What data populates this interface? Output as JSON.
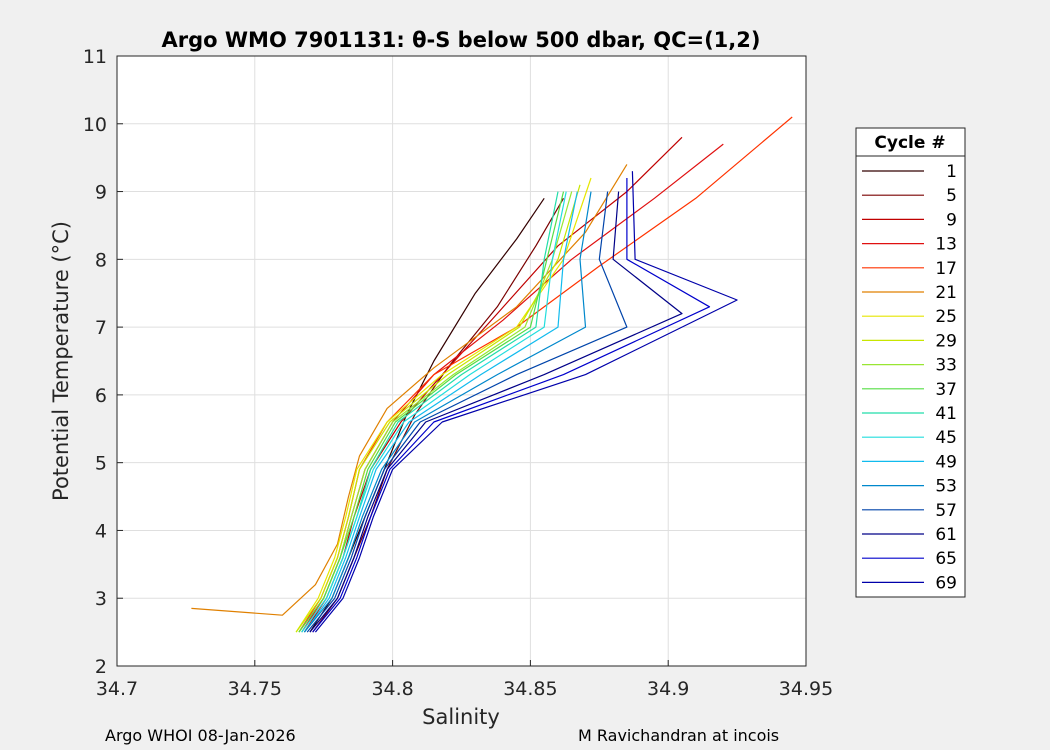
{
  "chart_data": {
    "type": "line",
    "title": "Argo WMO 7901131: θ-S below 500 dbar,  QC=(1,2)",
    "xlabel": "Salinity",
    "ylabel": "Potential Temperature (°C)",
    "xlim": [
      34.7,
      34.95
    ],
    "ylim": [
      2,
      11
    ],
    "xticks": [
      "34.7",
      "34.75",
      "34.8",
      "34.85",
      "34.9",
      "34.95"
    ],
    "yticks": [
      "2",
      "3",
      "4",
      "5",
      "6",
      "7",
      "8",
      "9",
      "10",
      "11"
    ],
    "grid": true,
    "legend": {
      "title": "Cycle #",
      "placement": "right",
      "entries": [
        {
          "label": "1",
          "color": "#330000"
        },
        {
          "label": "5",
          "color": "#7a0000"
        },
        {
          "label": "9",
          "color": "#c00000"
        },
        {
          "label": "13",
          "color": "#e01010"
        },
        {
          "label": "17",
          "color": "#ff3300"
        },
        {
          "label": "21",
          "color": "#e08000"
        },
        {
          "label": "25",
          "color": "#e6e600"
        },
        {
          "label": "29",
          "color": "#c8e600"
        },
        {
          "label": "33",
          "color": "#99e633"
        },
        {
          "label": "37",
          "color": "#55dd44"
        },
        {
          "label": "41",
          "color": "#22ddaa"
        },
        {
          "label": "45",
          "color": "#22dddd"
        },
        {
          "label": "49",
          "color": "#11bbee"
        },
        {
          "label": "53",
          "color": "#0088cc"
        },
        {
          "label": "57",
          "color": "#0044aa"
        },
        {
          "label": "61",
          "color": "#000088"
        },
        {
          "label": "65",
          "color": "#0000cc"
        },
        {
          "label": "69",
          "color": "#0000aa"
        }
      ]
    },
    "series": [
      {
        "name": "1",
        "s": [
          34.77,
          34.778,
          34.784,
          34.79,
          34.797,
          34.805,
          34.815,
          34.83,
          34.845,
          34.855
        ],
        "t": [
          2.5,
          3.0,
          3.6,
          4.2,
          4.9,
          5.7,
          6.5,
          7.5,
          8.3,
          8.9
        ]
      },
      {
        "name": "5",
        "s": [
          34.771,
          34.78,
          34.786,
          34.792,
          34.798,
          34.808,
          34.82,
          34.838,
          34.852,
          34.862
        ],
        "t": [
          2.5,
          3.0,
          3.6,
          4.2,
          4.9,
          5.7,
          6.4,
          7.3,
          8.2,
          8.9
        ]
      },
      {
        "name": "9",
        "s": [
          34.768,
          34.776,
          34.782,
          34.786,
          34.792,
          34.803,
          34.818,
          34.838,
          34.86,
          34.885,
          34.905
        ],
        "t": [
          2.5,
          3.0,
          3.6,
          4.2,
          4.9,
          5.6,
          6.3,
          7.2,
          8.2,
          9.0,
          9.8
        ]
      },
      {
        "name": "13",
        "s": [
          34.767,
          34.775,
          34.781,
          34.785,
          34.79,
          34.8,
          34.815,
          34.84,
          34.865,
          34.895,
          34.92
        ],
        "t": [
          2.5,
          3.0,
          3.6,
          4.2,
          4.9,
          5.6,
          6.3,
          7.1,
          8.0,
          8.9,
          9.7
        ]
      },
      {
        "name": "17",
        "s": [
          34.766,
          34.774,
          34.78,
          34.784,
          34.788,
          34.798,
          34.815,
          34.845,
          34.875,
          34.91,
          34.945
        ],
        "t": [
          2.5,
          3.0,
          3.6,
          4.2,
          4.9,
          5.6,
          6.3,
          7.0,
          7.9,
          8.9,
          10.1
        ]
      },
      {
        "name": "21",
        "s": [
          34.727,
          34.76,
          34.772,
          34.78,
          34.784,
          34.788,
          34.798,
          34.815,
          34.845,
          34.87,
          34.885
        ],
        "t": [
          2.85,
          2.75,
          3.2,
          3.8,
          4.5,
          5.1,
          5.8,
          6.4,
          7.3,
          8.4,
          9.4
        ]
      },
      {
        "name": "25",
        "s": [
          34.765,
          34.773,
          34.779,
          34.783,
          34.787,
          34.798,
          34.818,
          34.845,
          34.862,
          34.872
        ],
        "t": [
          2.5,
          3.0,
          3.6,
          4.2,
          4.9,
          5.6,
          6.3,
          7.0,
          8.0,
          9.2
        ]
      },
      {
        "name": "29",
        "s": [
          34.765,
          34.774,
          34.78,
          34.784,
          34.788,
          34.799,
          34.82,
          34.846,
          34.86,
          34.868
        ],
        "t": [
          2.5,
          3.0,
          3.6,
          4.2,
          4.9,
          5.6,
          6.3,
          7.0,
          8.0,
          9.1
        ]
      },
      {
        "name": "33",
        "s": [
          34.766,
          34.775,
          34.781,
          34.785,
          34.79,
          34.8,
          34.822,
          34.848,
          34.858,
          34.865
        ],
        "t": [
          2.5,
          3.0,
          3.6,
          4.2,
          4.9,
          5.6,
          6.3,
          7.0,
          8.0,
          9.0
        ]
      },
      {
        "name": "37",
        "s": [
          34.766,
          34.775,
          34.781,
          34.786,
          34.791,
          34.801,
          34.823,
          34.85,
          34.856,
          34.862
        ],
        "t": [
          2.5,
          3.0,
          3.6,
          4.2,
          4.9,
          5.6,
          6.3,
          7.0,
          8.0,
          9.0
        ]
      },
      {
        "name": "41",
        "s": [
          34.767,
          34.776,
          34.782,
          34.787,
          34.792,
          34.802,
          34.825,
          34.852,
          34.855,
          34.86
        ],
        "t": [
          2.5,
          3.0,
          3.6,
          4.2,
          4.9,
          5.6,
          6.3,
          7.0,
          8.0,
          9.0
        ]
      },
      {
        "name": "45",
        "s": [
          34.767,
          34.776,
          34.782,
          34.787,
          34.793,
          34.804,
          34.828,
          34.855,
          34.858,
          34.863
        ],
        "t": [
          2.5,
          3.0,
          3.6,
          4.2,
          4.9,
          5.6,
          6.3,
          7.0,
          8.0,
          9.0
        ]
      },
      {
        "name": "49",
        "s": [
          34.768,
          34.777,
          34.783,
          34.788,
          34.794,
          34.806,
          34.832,
          34.86,
          34.862,
          34.867
        ],
        "t": [
          2.5,
          3.0,
          3.6,
          4.2,
          4.9,
          5.6,
          6.3,
          7.0,
          8.0,
          9.0
        ]
      },
      {
        "name": "53",
        "s": [
          34.768,
          34.778,
          34.784,
          34.789,
          34.796,
          34.808,
          34.838,
          34.87,
          34.868,
          34.872
        ],
        "t": [
          2.5,
          3.0,
          3.6,
          4.2,
          4.9,
          5.6,
          6.3,
          7.0,
          8.0,
          9.0
        ]
      },
      {
        "name": "57",
        "s": [
          34.769,
          34.779,
          34.785,
          34.79,
          34.797,
          34.81,
          34.845,
          34.885,
          34.875,
          34.878
        ],
        "t": [
          2.5,
          3.0,
          3.6,
          4.2,
          4.9,
          5.6,
          6.3,
          7.0,
          8.0,
          9.0
        ]
      },
      {
        "name": "61",
        "s": [
          34.77,
          34.78,
          34.786,
          34.791,
          34.798,
          34.812,
          34.855,
          34.905,
          34.88,
          34.882
        ],
        "t": [
          2.5,
          3.0,
          3.6,
          4.2,
          4.9,
          5.6,
          6.3,
          7.2,
          8.0,
          9.0
        ]
      },
      {
        "name": "65",
        "s": [
          34.771,
          34.781,
          34.787,
          34.792,
          34.799,
          34.815,
          34.862,
          34.915,
          34.885,
          34.885
        ],
        "t": [
          2.5,
          3.0,
          3.6,
          4.2,
          4.9,
          5.6,
          6.3,
          7.3,
          8.0,
          9.2
        ]
      },
      {
        "name": "69",
        "s": [
          34.772,
          34.782,
          34.788,
          34.793,
          34.8,
          34.818,
          34.87,
          34.925,
          34.888,
          34.887
        ],
        "t": [
          2.5,
          3.0,
          3.6,
          4.2,
          4.9,
          5.6,
          6.3,
          7.4,
          8.0,
          9.3
        ]
      }
    ]
  },
  "footer": {
    "left": "Argo WHOI 08-Jan-2026",
    "right": "M Ravichandran at incois"
  }
}
